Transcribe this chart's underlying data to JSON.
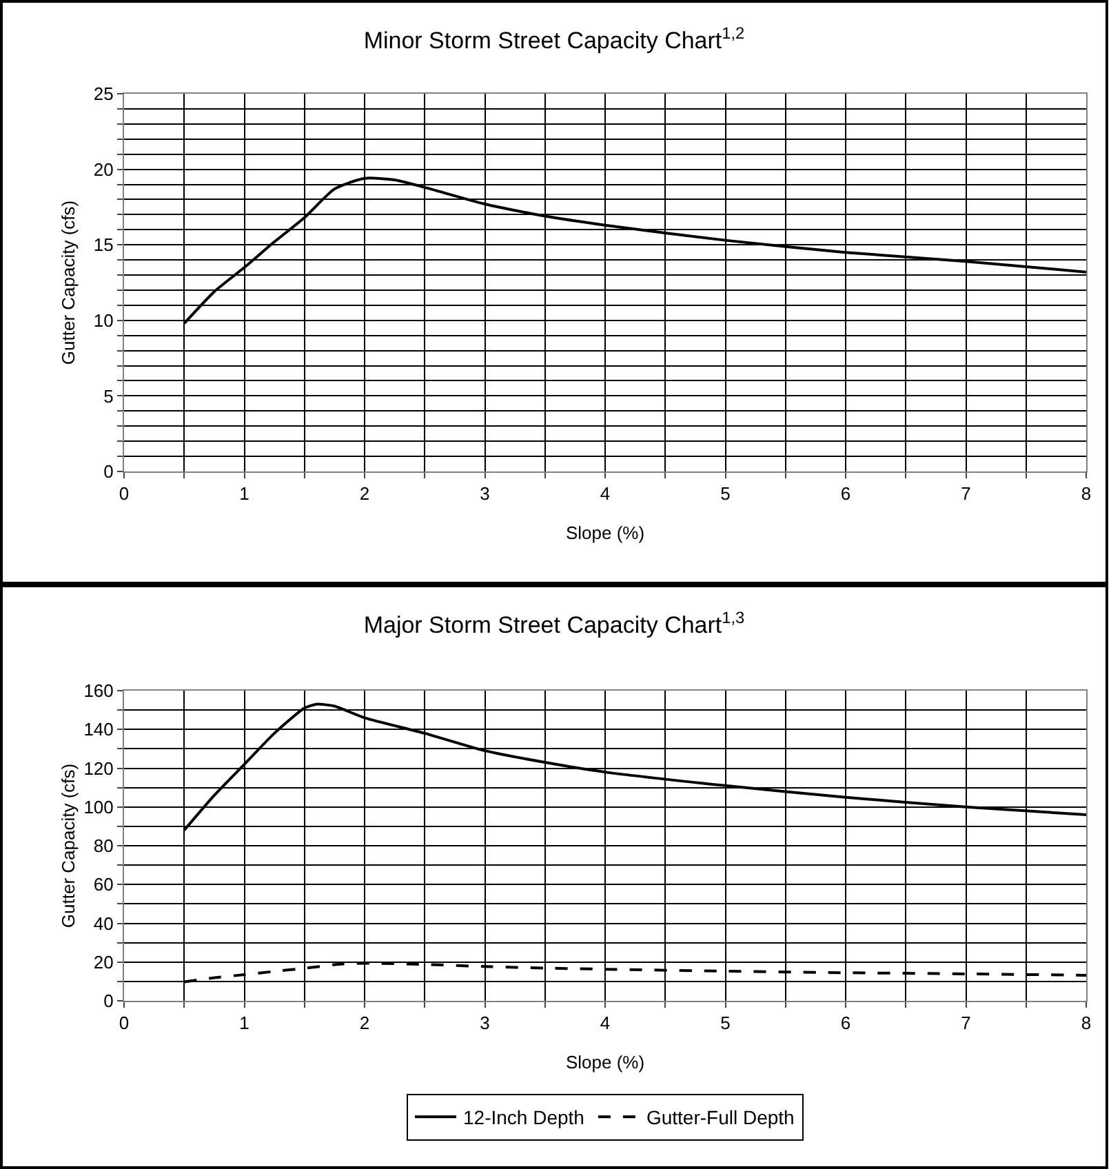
{
  "chart_data": [
    {
      "type": "line",
      "title": "Minor Storm Street Capacity Chart$^{1,2}$",
      "xlabel": "Slope (%)",
      "ylabel": "Gutter Capacity (cfs)",
      "x": [
        0.5,
        0.75,
        1,
        1.25,
        1.5,
        1.75,
        2,
        2.25,
        2.5,
        3,
        3.5,
        4,
        5,
        6,
        7,
        8
      ],
      "series": [
        {
          "color": "#000000",
          "line_style": "solid",
          "values": [
            9.8,
            11.9,
            13.5,
            15.2,
            16.8,
            18.7,
            19.4,
            19.3,
            18.8,
            17.7,
            16.9,
            16.3,
            15.3,
            14.5,
            13.9,
            13.2
          ]
        }
      ],
      "xlim": [
        0,
        8
      ],
      "ylim": [
        0,
        25
      ],
      "xticks": [
        0,
        {
          "value": 0.5,
          "label": null
        },
        1,
        {
          "value": 1.5,
          "label": null
        },
        2,
        {
          "value": 2.5,
          "label": null
        },
        3,
        {
          "value": 3.5,
          "label": null
        },
        4,
        {
          "value": 4.5,
          "label": null
        },
        5,
        {
          "value": 5.5,
          "label": null
        },
        6,
        {
          "value": 6.5,
          "label": null
        },
        7,
        {
          "value": 7.5,
          "label": null
        },
        8
      ],
      "yticks": [
        0,
        {
          "value": 1,
          "label": null
        },
        {
          "value": 2,
          "label": null
        },
        {
          "value": 3,
          "label": null
        },
        {
          "value": 4,
          "label": null
        },
        5,
        {
          "value": 6,
          "label": null
        },
        {
          "value": 7,
          "label": null
        },
        {
          "value": 8,
          "label": null
        },
        {
          "value": 9,
          "label": null
        },
        10,
        {
          "value": 11,
          "label": null
        },
        {
          "value": 12,
          "label": null
        },
        {
          "value": 13,
          "label": null
        },
        {
          "value": 14,
          "label": null
        },
        15,
        {
          "value": 16,
          "label": null
        },
        {
          "value": 17,
          "label": null
        },
        {
          "value": 18,
          "label": null
        },
        {
          "value": 19,
          "label": null
        },
        20,
        {
          "value": 21,
          "label": null
        },
        {
          "value": 22,
          "label": null
        },
        {
          "value": 23,
          "label": null
        },
        {
          "value": 24,
          "label": null
        },
        25
      ],
      "grid": true,
      "legend": false,
      "marker": "none"
    },
    {
      "type": "line",
      "title": "Major Storm Street Capacity Chart$^{1,3}$",
      "xlabel": "Slope (%)",
      "ylabel": "Gutter Capacity (cfs)",
      "x": [
        0.5,
        0.75,
        1,
        1.25,
        1.5,
        1.6,
        1.75,
        2,
        2.5,
        3,
        3.5,
        4,
        5,
        6,
        7,
        8
      ],
      "series": [
        {
          "name": "12-Inch Depth",
          "color": "#000000",
          "line_style": "solid",
          "values": [
            88,
            106,
            122,
            138,
            151,
            153,
            152,
            146,
            138,
            129,
            123,
            118,
            111,
            105,
            100,
            96
          ]
        },
        {
          "name": "Gutter-Full Depth",
          "color": "#000000",
          "line_style": "dashed",
          "values": [
            9.8,
            11.9,
            13.5,
            15.2,
            16.8,
            17.5,
            18.7,
            19.4,
            18.8,
            17.7,
            16.9,
            16.3,
            15.3,
            14.5,
            13.9,
            13.2
          ]
        }
      ],
      "xlim": [
        0,
        8
      ],
      "ylim": [
        0,
        160
      ],
      "xticks": [
        0,
        {
          "value": 0.5,
          "label": null
        },
        1,
        {
          "value": 1.5,
          "label": null
        },
        2,
        {
          "value": 2.5,
          "label": null
        },
        3,
        {
          "value": 3.5,
          "label": null
        },
        4,
        {
          "value": 4.5,
          "label": null
        },
        5,
        {
          "value": 5.5,
          "label": null
        },
        6,
        {
          "value": 6.5,
          "label": null
        },
        7,
        {
          "value": 7.5,
          "label": null
        },
        8
      ],
      "yticks": [
        0,
        {
          "value": 10,
          "label": null
        },
        20,
        {
          "value": 30,
          "label": null
        },
        40,
        {
          "value": 50,
          "label": null
        },
        60,
        {
          "value": 70,
          "label": null
        },
        80,
        {
          "value": 90,
          "label": null
        },
        100,
        {
          "value": 110,
          "label": null
        },
        120,
        {
          "value": 130,
          "label": null
        },
        140,
        {
          "value": 150,
          "label": null
        },
        160
      ],
      "grid": true,
      "legend": "bottom",
      "marker": "none"
    }
  ]
}
